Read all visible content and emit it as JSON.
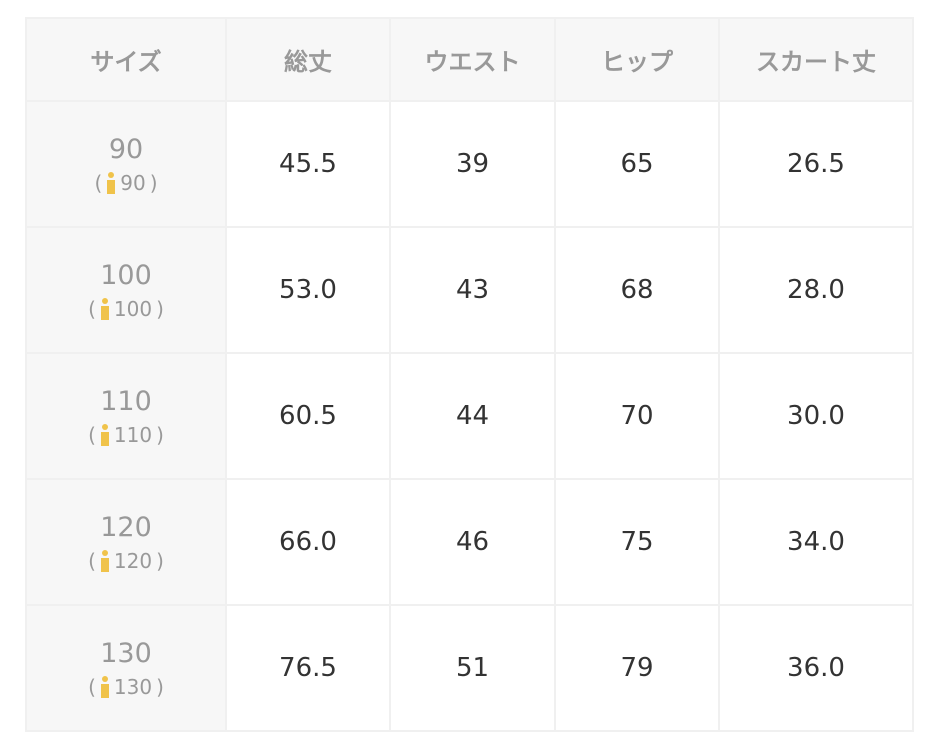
{
  "headers": [
    "サイズ",
    "総丈",
    "ウエスト",
    "ヒップ",
    "スカート丈"
  ],
  "rows": [
    {
      "size": "90",
      "child": "90",
      "values": [
        "45.5",
        "39",
        "65",
        "26.5"
      ]
    },
    {
      "size": "100",
      "child": "100",
      "values": [
        "53.0",
        "43",
        "68",
        "28.0"
      ]
    },
    {
      "size": "110",
      "child": "110",
      "values": [
        "60.5",
        "44",
        "70",
        "30.0"
      ]
    },
    {
      "size": "120",
      "child": "120",
      "values": [
        "66.0",
        "46",
        "75",
        "34.0"
      ]
    },
    {
      "size": "130",
      "child": "130",
      "values": [
        "76.5",
        "51",
        "79",
        "36.0"
      ]
    }
  ],
  "icon": "child-person-icon",
  "icon_color": "#f0c34a"
}
